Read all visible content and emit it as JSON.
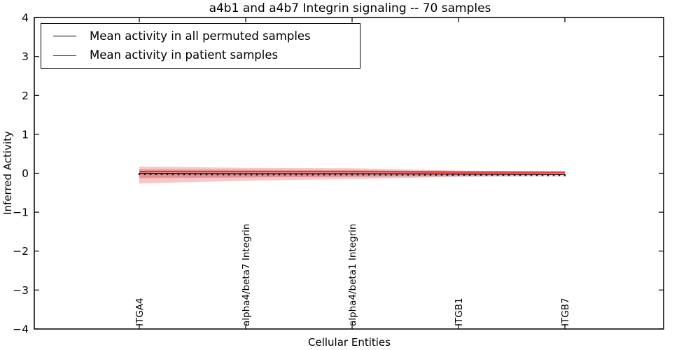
{
  "legend": {
    "items": [
      {
        "label": "Mean activity in all permuted samples",
        "color": "#000000"
      },
      {
        "label": "Mean activity in patient samples",
        "color": "#ff0000"
      }
    ],
    "position": "upper left"
  },
  "chart_data": {
    "type": "line",
    "title": "a4b1 and a4b7 Integrin signaling -- 70 samples",
    "xlabel": "Cellular Entities",
    "ylabel": "Inferred Activity",
    "ylim": [
      -4,
      4
    ],
    "grid": false,
    "frame_color": "#000000",
    "yticks": [
      4,
      3,
      2,
      1,
      0,
      -1,
      -2,
      -3,
      -4
    ],
    "ytick_labels": [
      "4",
      "3",
      "2",
      "1",
      "0",
      "−1",
      "−2",
      "−3",
      "−4"
    ],
    "x_tick_labels": [
      "ITGA4",
      "alpha4/beta7 Integrin",
      "alpha4/beta1 Integrin",
      "ITGB1",
      "ITGB7"
    ],
    "n_points": 77,
    "tick_indices": [
      0,
      19,
      38,
      57,
      76
    ],
    "series": [
      {
        "name": "Mean activity in all permuted samples",
        "color": "#000000",
        "marker": "square-dots",
        "values_at_ticks": [
          0.0,
          -0.01,
          -0.01,
          -0.02,
          -0.03
        ]
      },
      {
        "name": "Mean activity in patient samples",
        "color": "#ff0000",
        "marker": "none",
        "values_at_ticks": [
          0.05,
          0.04,
          0.04,
          0.03,
          0.03
        ]
      }
    ],
    "bands": [
      {
        "name": "permuted-std",
        "color": "#9aa0c8",
        "opacity": 0.22,
        "upper_at_ticks": [
          0.06,
          0.06,
          0.06,
          0.06,
          0.055
        ],
        "lower_at_ticks": [
          -0.1,
          -0.1,
          -0.1,
          -0.1,
          -0.09
        ]
      },
      {
        "name": "patient-std-outer",
        "color": "#e64545",
        "opacity": 0.3,
        "upper_at_ticks": [
          0.17,
          0.14,
          0.13,
          0.07,
          0.04
        ],
        "lower_at_ticks": [
          -0.26,
          -0.19,
          -0.15,
          -0.09,
          -0.05
        ]
      },
      {
        "name": "patient-std-inner",
        "color": "#d93030",
        "opacity": 0.3,
        "upper_at_ticks": [
          0.1,
          0.09,
          0.08,
          0.05,
          0.03
        ],
        "lower_at_ticks": [
          -0.13,
          -0.11,
          -0.09,
          -0.06,
          -0.04
        ]
      }
    ],
    "legend_position": "upper left"
  }
}
